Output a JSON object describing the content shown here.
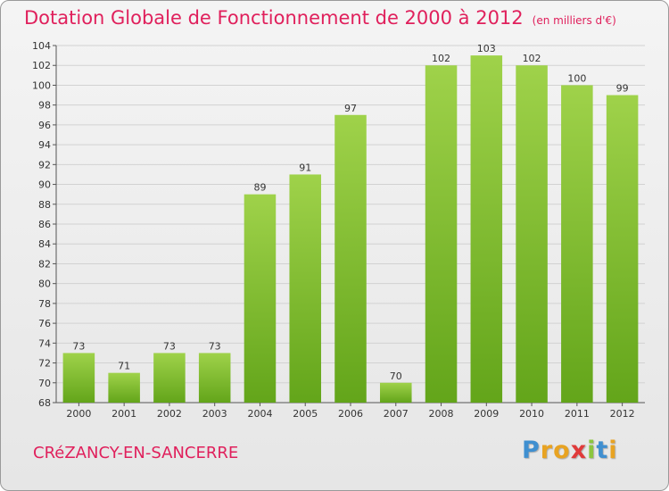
{
  "chart_data": {
    "type": "bar",
    "title": "Dotation Globale de Fonctionnement de 2000 à 2012",
    "subtitle": "(en milliers d'€)",
    "categories": [
      "2000",
      "2001",
      "2002",
      "2003",
      "2004",
      "2005",
      "2006",
      "2007",
      "2008",
      "2009",
      "2010",
      "2011",
      "2012"
    ],
    "values": [
      73,
      71,
      73,
      73,
      89,
      91,
      97,
      70,
      102,
      103,
      102,
      100,
      99
    ],
    "ylim": [
      68,
      104
    ],
    "yticks": [
      68,
      70,
      72,
      74,
      76,
      78,
      80,
      82,
      84,
      86,
      88,
      90,
      92,
      94,
      96,
      98,
      100,
      102,
      104
    ],
    "grid": true,
    "legend": "none",
    "colors": {
      "bar_light": "#9fd24a",
      "bar_dark": "#63a51a",
      "title": "#e0205c"
    }
  },
  "footer": {
    "commune": "CRéZANCY-EN-SANCERRE",
    "logo_letters": [
      {
        "char": "P",
        "color": "#3f8fd0"
      },
      {
        "char": "r",
        "color": "#e8a322"
      },
      {
        "char": "o",
        "color": "#e8a322"
      },
      {
        "char": "x",
        "color": "#e03a3a"
      },
      {
        "char": "i",
        "color": "#8cc63f"
      },
      {
        "char": "t",
        "color": "#3f8fd0"
      },
      {
        "char": "i",
        "color": "#e8a322"
      }
    ]
  }
}
